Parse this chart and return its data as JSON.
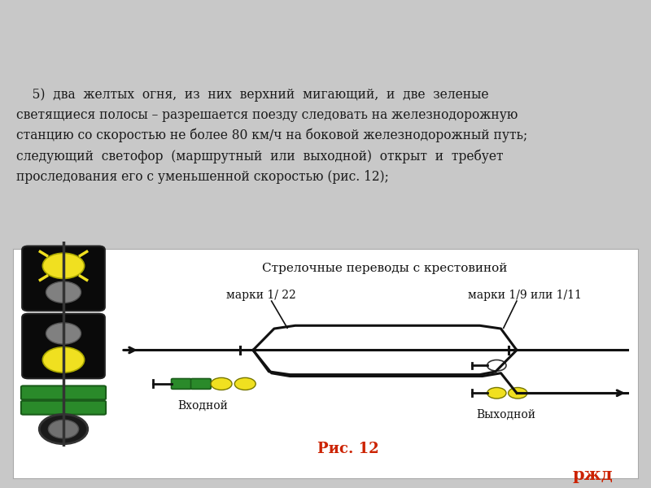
{
  "bg_color_top": "#c8c8c8",
  "bg_color_text": "#f0eef5",
  "bg_color_gradient_right": "#fef0f0",
  "diagram_bg": "#ffffff",
  "main_text_line1": "    5)  два  желтых  огня,  из  них  верхний  мигающий,  и  две  зеленые",
  "main_text_line2": "светящиеся полосы – разрешается поезду следовать на железнодорожную",
  "main_text_line3": "станцию со скоростью не более 80 км/ч на боковой железнодорожный путь;",
  "main_text_line4": "следующий  светофор  (маршрутный  или  выходной)  открыт  и  требует",
  "main_text_line5": "проследования его с уменьшенной скоростью (рис. 12);",
  "diagram_title": "Стрелочные переводы с крестовиной",
  "label_marki_22": "марки 1/ 22",
  "label_marki_911": "марки 1/9 или 1/11",
  "label_vhodnoj": "Входной",
  "label_vyhodnoj": "Выходной",
  "caption": "Рис. 12",
  "caption_color": "#cc2200",
  "yellow_color": "#f0e020",
  "green_color": "#2a8a2a",
  "black_color": "#0a0a0a",
  "dark_gray": "#1a1a1a",
  "gray_color": "#909090",
  "track_color": "#111111",
  "rjd_color": "#cc2200"
}
